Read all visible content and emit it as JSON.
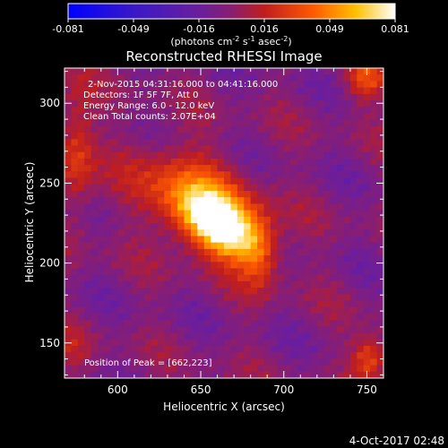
{
  "colorbar": {
    "ticks": [
      "-0.081",
      "-0.049",
      "-0.016",
      "0.016",
      "0.049",
      "0.081"
    ],
    "unit_line": "(photons cm",
    "unit_exp1": "-2",
    "unit_mid": " s",
    "unit_exp2": "-1",
    "unit_tail": " asec",
    "unit_exp3": "-2",
    "unit_close": ")"
  },
  "plot": {
    "title": "Reconstructed RHESSI Image",
    "info_lines": [
      "2-Nov-2015 04:31:16.000 to 04:41:16.000",
      "Detectors: 1F 5F 7F, Att 0",
      "Energy Range: 6.0 - 12.0 keV",
      "Clean     Total counts: 2.07E+04"
    ],
    "peak_label": "Position of Peak = [662,223]",
    "footer_date": "4-Oct-2017 02:48"
  },
  "chart_data": {
    "type": "heatmap",
    "title": "Reconstructed RHESSI Image",
    "xlabel": "Heliocentric X (arcsec)",
    "ylabel": "Heliocentric Y (arcsec)",
    "xlim": [
      568,
      760
    ],
    "ylim": [
      128,
      322
    ],
    "x_ticks": [
      600,
      650,
      700,
      750
    ],
    "y_ticks": [
      150,
      200,
      250,
      300
    ],
    "color_range": [
      -0.081,
      0.081
    ],
    "colormap": "blue-purple-red-yellow-white",
    "peak_position": [
      662,
      223
    ],
    "sources": [
      {
        "x": 662,
        "y": 223,
        "amp": 0.081,
        "sx": 18,
        "sy": 11,
        "angle_deg": -35
      },
      {
        "x": 648,
        "y": 240,
        "amp": 0.045,
        "sx": 28,
        "sy": 18,
        "angle_deg": -35
      },
      {
        "x": 685,
        "y": 205,
        "amp": 0.028,
        "sx": 8,
        "sy": 16,
        "angle_deg": 0
      },
      {
        "x": 750,
        "y": 315,
        "amp": 0.035,
        "sx": 9,
        "sy": 9,
        "angle_deg": 0
      },
      {
        "x": 575,
        "y": 270,
        "amp": 0.03,
        "sx": 8,
        "sy": 30,
        "angle_deg": 0
      },
      {
        "x": 752,
        "y": 140,
        "amp": 0.04,
        "sx": 8,
        "sy": 10,
        "angle_deg": 0
      },
      {
        "x": 572,
        "y": 145,
        "amp": 0.012,
        "sx": 8,
        "sy": 10,
        "angle_deg": 0
      }
    ],
    "colors": {
      "min": "#0000ff",
      "low": "#5a1e96",
      "mid": "#c01e1e",
      "high": "#ff8c00",
      "max": "#ffffff"
    }
  }
}
